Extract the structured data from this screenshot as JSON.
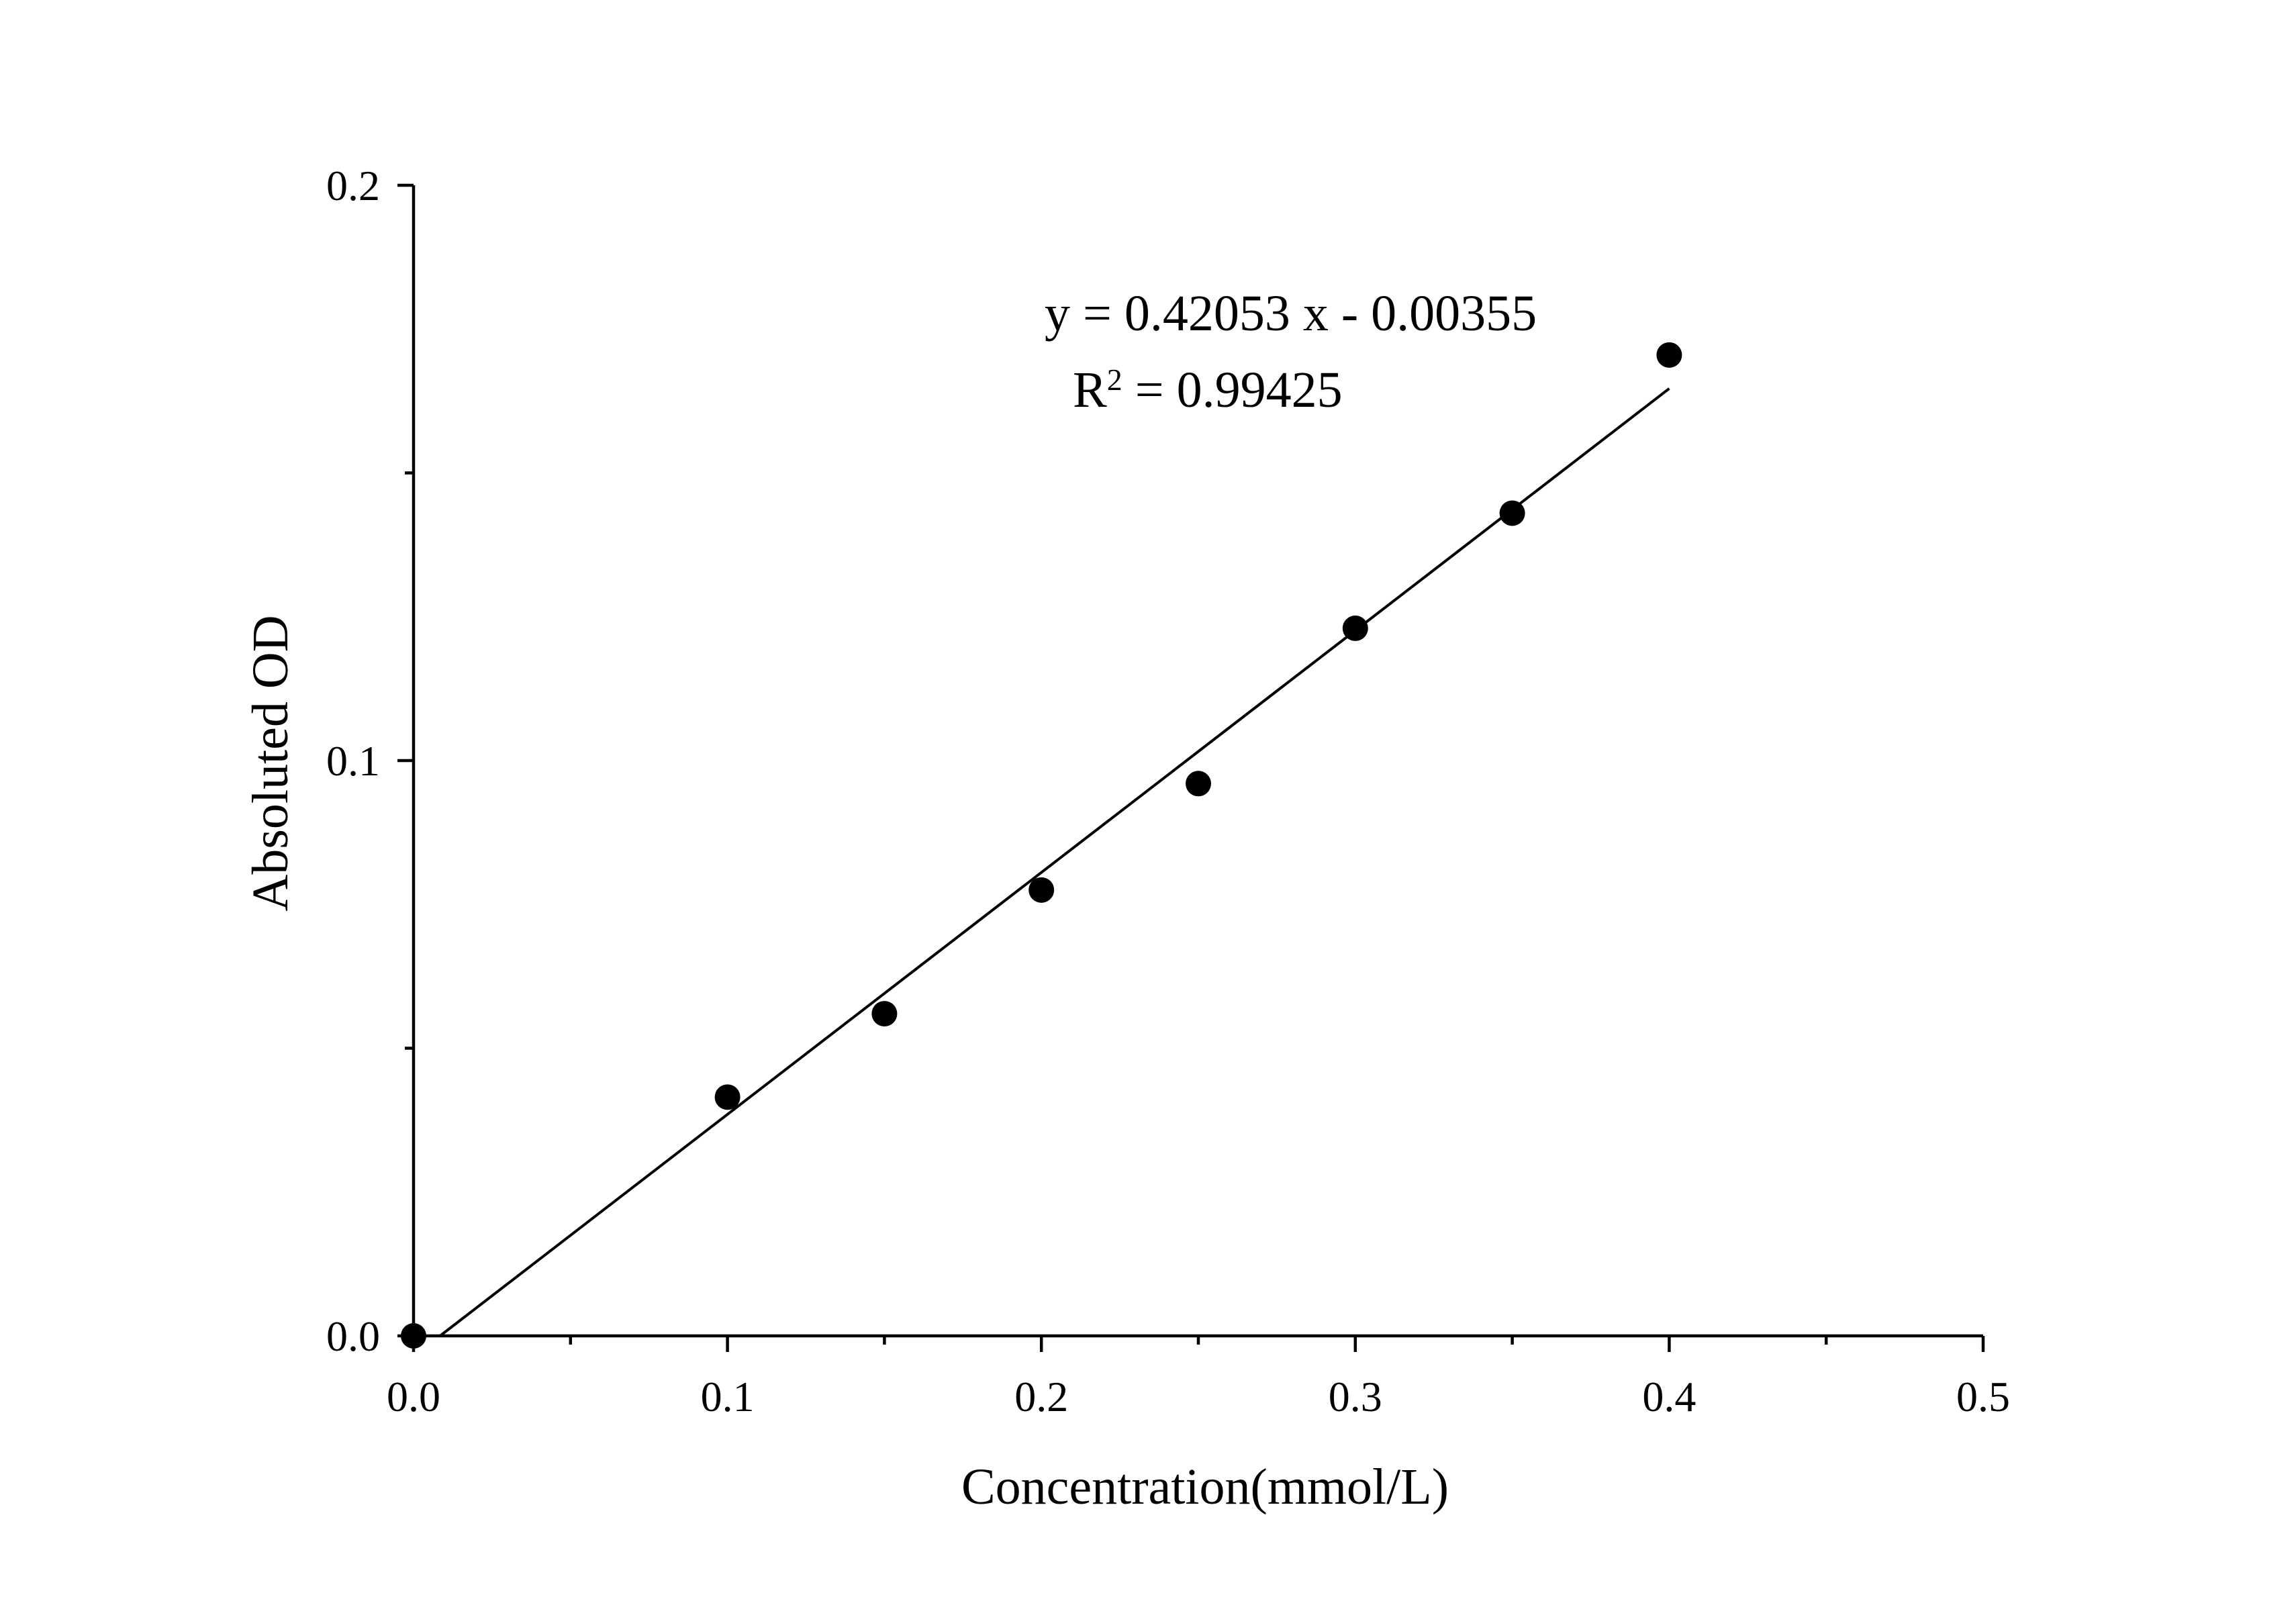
{
  "chart_data": {
    "type": "scatter",
    "xlabel": "Concentration(mmol/L)",
    "ylabel": "Absoluted OD",
    "xlim": [
      0,
      0.5
    ],
    "ylim": [
      0,
      0.2
    ],
    "x_ticks": [
      "0.0",
      "0.1",
      "0.2",
      "0.3",
      "0.4",
      "0.5"
    ],
    "y_ticks": [
      "0.0",
      "0.1",
      "0.2"
    ],
    "x_tick_values": [
      0,
      0.1,
      0.2,
      0.3,
      0.4,
      0.5
    ],
    "y_tick_values": [
      0,
      0.1,
      0.2
    ],
    "x_minor_ticks": [
      0.05,
      0.15,
      0.25,
      0.35,
      0.45
    ],
    "y_minor_ticks": [
      0.05,
      0.15
    ],
    "grid": false,
    "points": [
      {
        "x": 0.0,
        "y": 0.0
      },
      {
        "x": 0.1,
        "y": 0.0415
      },
      {
        "x": 0.15,
        "y": 0.056
      },
      {
        "x": 0.2,
        "y": 0.0775
      },
      {
        "x": 0.25,
        "y": 0.096
      },
      {
        "x": 0.3,
        "y": 0.123
      },
      {
        "x": 0.35,
        "y": 0.143
      },
      {
        "x": 0.4,
        "y": 0.1705
      }
    ],
    "fit": {
      "slope": 0.42053,
      "intercept": -0.00355,
      "x_range": [
        0.00844,
        0.4
      ]
    },
    "annotation": {
      "equation": "y = 0.42053 x - 0.00355",
      "r2_base": "R",
      "r2_sup": "2",
      "r2_value": " = 0.99425"
    }
  }
}
